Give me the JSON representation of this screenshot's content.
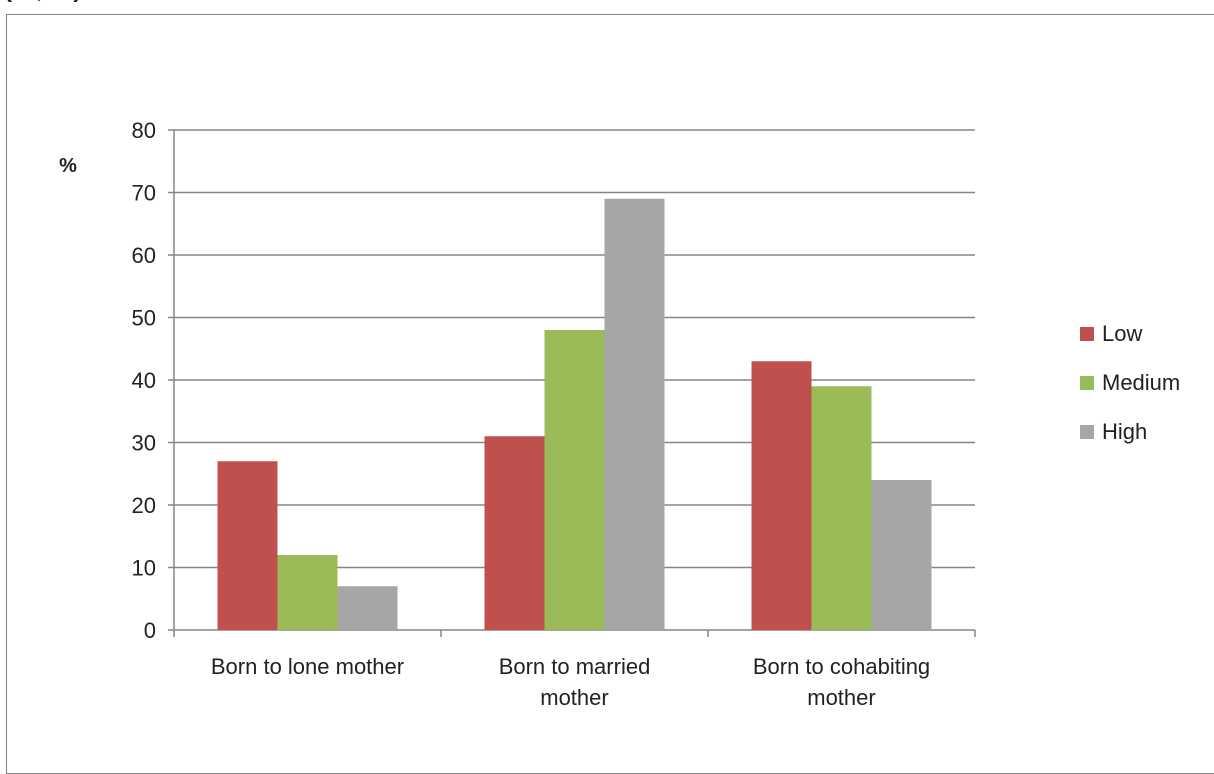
{
  "header": {
    "caption": "(…, …)"
  },
  "chart_data": {
    "type": "bar",
    "title": "",
    "xlabel": "",
    "ylabel": "%",
    "ylim": [
      0,
      80
    ],
    "yticks": [
      0,
      10,
      20,
      30,
      40,
      50,
      60,
      70,
      80
    ],
    "grid": true,
    "legend_position": "right",
    "categories": [
      [
        "Born to lone mother"
      ],
      [
        "Born to married",
        "mother"
      ],
      [
        "Born to cohabiting",
        "mother"
      ]
    ],
    "series": [
      {
        "name": "Low",
        "color": "#c0504d",
        "values": [
          27,
          31,
          43
        ]
      },
      {
        "name": "Medium",
        "color": "#9bbb59",
        "values": [
          12,
          48,
          39
        ]
      },
      {
        "name": "High",
        "color": "#a6a6a6",
        "values": [
          7,
          69,
          24
        ]
      }
    ]
  }
}
